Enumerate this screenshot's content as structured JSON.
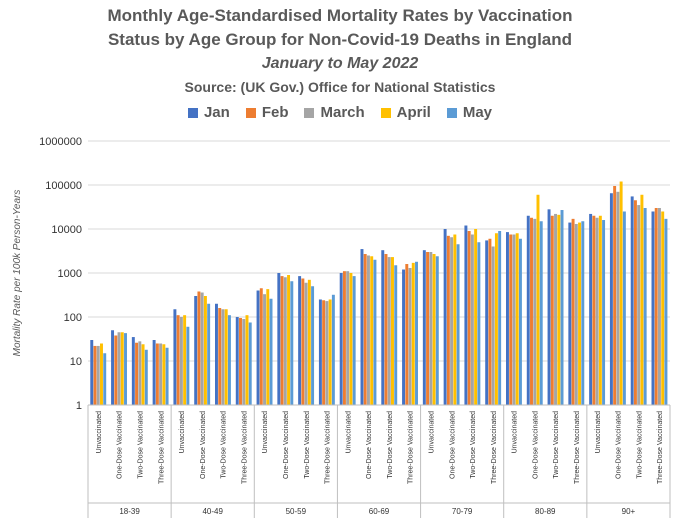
{
  "chart_data": {
    "type": "bar",
    "title_lines": [
      "Monthly Age-Standardised Mortality Rates by Vaccination",
      "Status by Age Group for Non-Covid-19 Deaths in England"
    ],
    "subtitle": "January to May 2022",
    "source": "Source: (UK Gov.) Office for National Statistics",
    "ylabel": "Mortality Rate per 100k Person-Years",
    "yscale": "log",
    "ylim": [
      1,
      1000000
    ],
    "ytick_labels": [
      "1",
      "10",
      "100",
      "1000",
      "10000",
      "100000",
      "1000000"
    ],
    "legend_position": "top",
    "groups": [
      "18-39",
      "40-49",
      "50-59",
      "60-69",
      "70-79",
      "80-89",
      "90+"
    ],
    "statuses": [
      "Unvaccinated",
      "One-Dose Vaccinated",
      "Two-Dose Vaccinated",
      "Three-Dose Vaccinated"
    ],
    "series": [
      {
        "name": "Jan",
        "color": "#4472C4",
        "values": [
          30,
          50,
          35,
          30,
          150,
          300,
          200,
          100,
          400,
          1000,
          850,
          250,
          1000,
          3500,
          3300,
          1200,
          3300,
          10000,
          12000,
          5500,
          8500,
          20000,
          28000,
          14000,
          22000,
          65000,
          55000,
          25000
        ]
      },
      {
        "name": "Feb",
        "color": "#ED7D31",
        "values": [
          22,
          38,
          26,
          25,
          110,
          380,
          160,
          95,
          450,
          850,
          750,
          240,
          1100,
          2700,
          2700,
          1600,
          3000,
          7000,
          9000,
          6000,
          7500,
          18000,
          20000,
          17000,
          20000,
          95000,
          45000,
          30000
        ]
      },
      {
        "name": "March",
        "color": "#A5A5A5",
        "values": [
          22,
          45,
          28,
          25,
          100,
          360,
          150,
          90,
          330,
          800,
          600,
          230,
          1100,
          2500,
          2300,
          1300,
          3000,
          6500,
          7500,
          4000,
          7500,
          17000,
          22000,
          13000,
          18000,
          70000,
          35000,
          30000
        ]
      },
      {
        "name": "April",
        "color": "#FFC000",
        "values": [
          25,
          45,
          24,
          24,
          110,
          300,
          150,
          110,
          430,
          900,
          700,
          250,
          1000,
          2400,
          2300,
          1700,
          2700,
          7500,
          10000,
          8000,
          8000,
          60000,
          21000,
          14000,
          20000,
          120000,
          60000,
          25000
        ]
      },
      {
        "name": "May",
        "color": "#5B9BD5",
        "values": [
          15,
          43,
          18,
          20,
          60,
          200,
          110,
          75,
          260,
          650,
          500,
          320,
          850,
          2000,
          1500,
          1800,
          2400,
          4500,
          5000,
          9000,
          6000,
          15000,
          27000,
          15000,
          16000,
          25000,
          30000,
          17000
        ]
      }
    ]
  }
}
